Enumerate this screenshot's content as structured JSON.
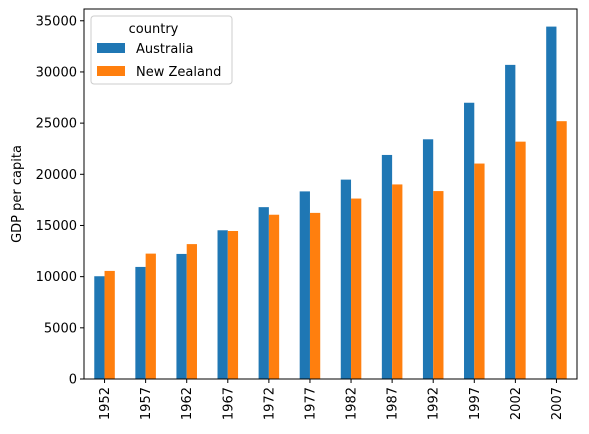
{
  "chart_data": {
    "type": "bar",
    "ylabel": "GDP per capita",
    "xlabel": "",
    "categories": [
      "1952",
      "1957",
      "1962",
      "1967",
      "1972",
      "1977",
      "1982",
      "1987",
      "1992",
      "1997",
      "2002",
      "2007"
    ],
    "series": [
      {
        "name": "Australia",
        "color": "#1f77b4",
        "values": [
          10040,
          10950,
          12220,
          14530,
          16790,
          18330,
          19480,
          21890,
          23420,
          26990,
          30690,
          34430
        ]
      },
      {
        "name": "New Zealand",
        "color": "#ff7f0e",
        "values": [
          10560,
          12250,
          13180,
          14460,
          16050,
          16230,
          17630,
          19010,
          18360,
          21050,
          23190,
          25190
        ]
      }
    ],
    "ylim": [
      0,
      36150
    ],
    "yticks": [
      0,
      5000,
      10000,
      15000,
      20000,
      25000,
      30000,
      35000
    ],
    "legend": {
      "title": "country",
      "placement": "top-left"
    },
    "grid": false
  }
}
